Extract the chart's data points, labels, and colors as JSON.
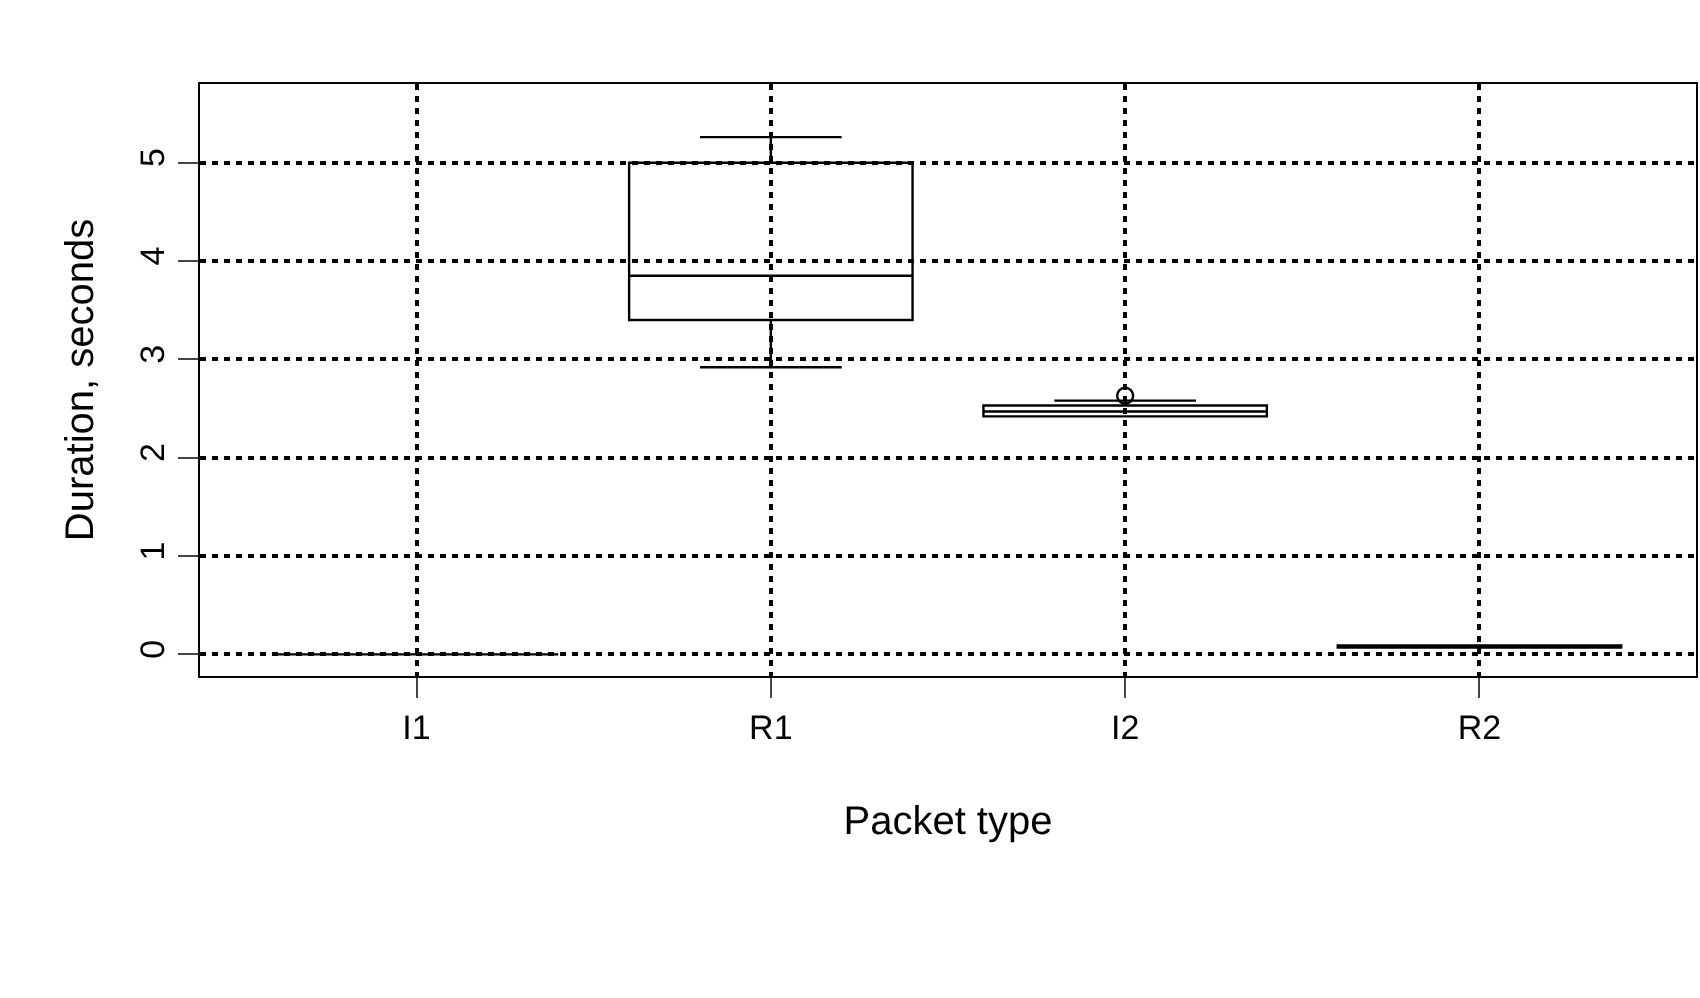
{
  "chart_data": {
    "type": "box",
    "xlabel": "Packet type",
    "ylabel": "Duration, seconds",
    "categories": [
      "I1",
      "R1",
      "I2",
      "R2"
    ],
    "boxes": [
      {
        "low": 0,
        "q1": 0,
        "median": 0,
        "q3": 0,
        "high": 0
      },
      {
        "low": 2.92,
        "q1": 3.4,
        "median": 3.85,
        "q3": 5.0,
        "high": 5.26
      },
      {
        "low": 2.42,
        "q1": 2.42,
        "median": 2.47,
        "q3": 2.53,
        "high": 2.58,
        "outliers": [
          2.63
        ]
      },
      {
        "low": 0.07,
        "q1": 0.07,
        "median": 0.08,
        "q3": 0.09,
        "high": 0.09
      }
    ],
    "color": "#000000",
    "ylim": [
      -0.22,
      5.8
    ],
    "yticks": [
      0,
      1,
      2,
      3,
      4,
      5
    ],
    "grid": true
  }
}
